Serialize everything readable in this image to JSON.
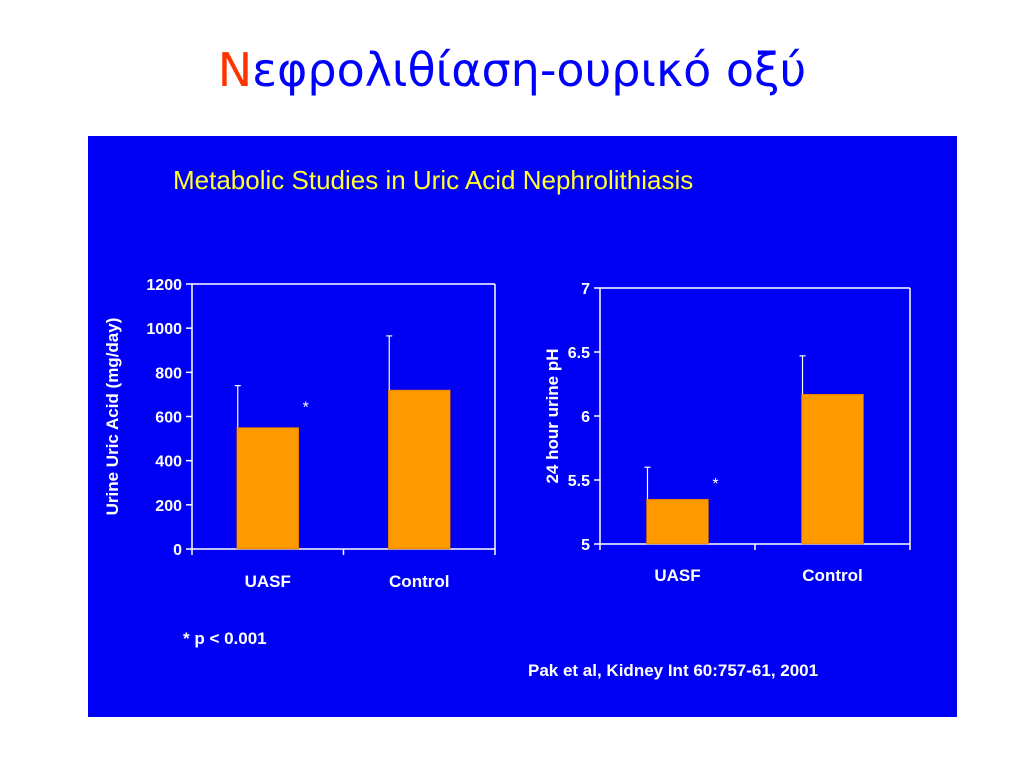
{
  "slide": {
    "title_first_letter": "Ν",
    "title_rest": "εφρολιθίαση-ουρικό οξύ",
    "colors": {
      "title": "#0000ff",
      "title_first_letter": "#ff3300",
      "panel_background": "#0000f5"
    }
  },
  "figure": {
    "title": "Metabolic Studies in Uric Acid Nephrolithiasis",
    "footnote": "* p < 0.001",
    "citation": "Pak et al, Kidney Int 60:757-61, 2001",
    "colors": {
      "title": "#ffff33",
      "bar": "#ff9900",
      "axis": "#ffffff",
      "text": "#ffffff"
    }
  },
  "chart_data": [
    {
      "type": "bar",
      "categories": [
        "UASF",
        "Control"
      ],
      "values": [
        550,
        720
      ],
      "error_upper": [
        740,
        965
      ],
      "significance": [
        "*",
        ""
      ],
      "ylabel": "Urine Uric Acid (mg/day)",
      "ylim": [
        0,
        1200
      ],
      "yticks": [
        0,
        200,
        400,
        600,
        800,
        1000,
        1200
      ],
      "ytick_labels": [
        "0",
        "200",
        "400",
        "600",
        "800",
        "1000",
        "1200"
      ],
      "grid": false,
      "legend": "none"
    },
    {
      "type": "bar",
      "categories": [
        "UASF",
        "Control"
      ],
      "values": [
        5.35,
        6.17
      ],
      "error_upper": [
        5.6,
        6.47
      ],
      "significance": [
        "*",
        ""
      ],
      "ylabel": "24 hour urine pH",
      "ylim": [
        5,
        7
      ],
      "yticks": [
        5,
        5.5,
        6,
        6.5,
        7
      ],
      "ytick_labels": [
        "5",
        "5.5",
        "6",
        "6.5",
        "7"
      ],
      "grid": false,
      "legend": "none"
    }
  ]
}
